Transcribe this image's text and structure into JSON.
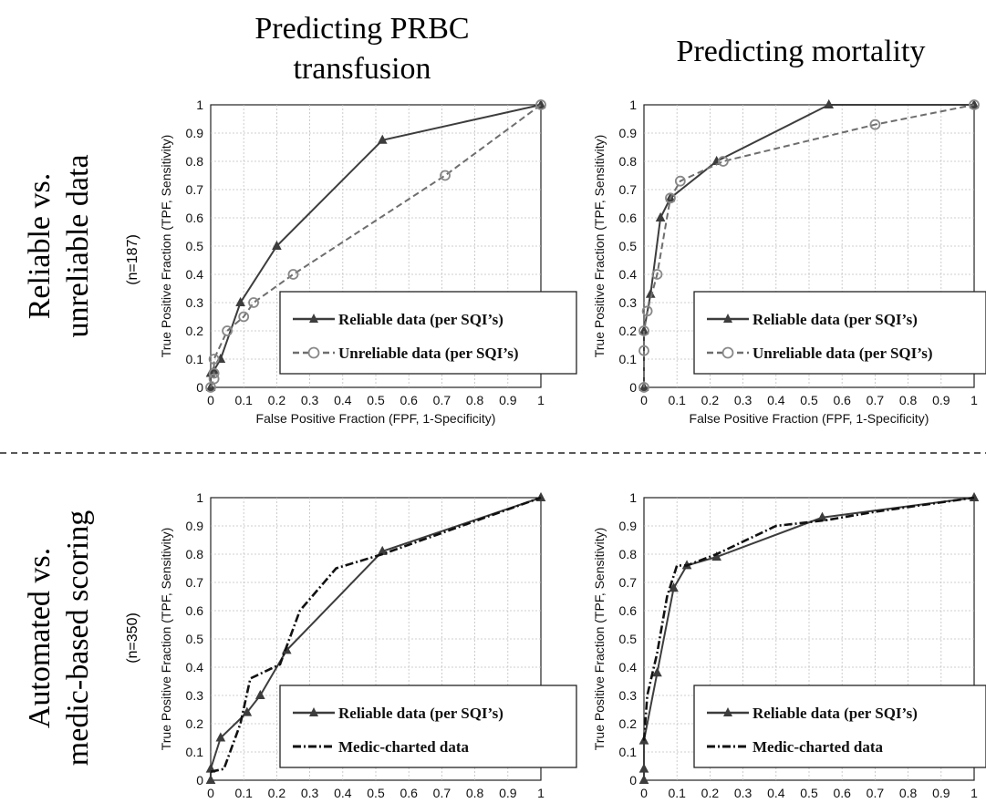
{
  "column_titles": [
    [
      "Predicting PRBC",
      "transfusion"
    ],
    [
      "Predicting mortality"
    ]
  ],
  "row_titles": [
    {
      "lines": [
        "Reliable vs.",
        "unreliable data"
      ],
      "n": "(n=187)"
    },
    {
      "lines": [
        "Automated vs.",
        "medic-based scoring"
      ],
      "n": "(n=350)"
    }
  ],
  "colors": {
    "solid_series": "#3d3d3d",
    "dashed_series_top": "#6e6e6e",
    "dashed_series_bottom": "#111111",
    "grid": "#c0c0c0"
  },
  "chart_data": [
    {
      "type": "line",
      "xlabel": "False Positive Fraction (FPF, 1-Specificity)",
      "ylabel": "True Positive Fraction (TPF, Sensitivity)",
      "xlim": [
        0,
        1
      ],
      "ylim": [
        0,
        1
      ],
      "ticks": [
        "0",
        "0.1",
        "0.2",
        "0.3",
        "0.4",
        "0.5",
        "0.6",
        "0.7",
        "0.8",
        "0.9",
        "1"
      ],
      "grid": true,
      "legend_position": "bottom-right",
      "series": [
        {
          "name": "Reliable data (per SQI’s)",
          "marker": "triangle",
          "style": "solid",
          "x": [
            0,
            0,
            0.01,
            0.03,
            0.09,
            0.2,
            0.52,
            1
          ],
          "y": [
            0,
            0.05,
            0.06,
            0.1,
            0.3,
            0.5,
            0.875,
            1
          ]
        },
        {
          "name": "Unreliable data (per SQI’s)",
          "marker": "circle",
          "style": "dashed",
          "x": [
            0,
            0.01,
            0.01,
            0.01,
            0.05,
            0.1,
            0.13,
            0.25,
            0.71,
            1
          ],
          "y": [
            0,
            0.03,
            0.05,
            0.1,
            0.2,
            0.25,
            0.3,
            0.4,
            0.75,
            1
          ]
        }
      ]
    },
    {
      "type": "line",
      "xlabel": "False Positive Fraction (FPF, 1-Specificity)",
      "ylabel": "True Positive Fraction (TPF, Sensitivity)",
      "xlim": [
        0,
        1
      ],
      "ylim": [
        0,
        1
      ],
      "ticks": [
        "0",
        "0.1",
        "0.2",
        "0.3",
        "0.4",
        "0.5",
        "0.6",
        "0.7",
        "0.8",
        "0.9",
        "1"
      ],
      "grid": true,
      "legend_position": "bottom-right",
      "series": [
        {
          "name": "Reliable data (per SQI’s)",
          "marker": "triangle",
          "style": "solid",
          "x": [
            0,
            0,
            0.02,
            0.05,
            0.08,
            0.22,
            0.56,
            1
          ],
          "y": [
            0,
            0.2,
            0.33,
            0.6,
            0.67,
            0.8,
            1,
            1
          ]
        },
        {
          "name": "Unreliable data (per SQI’s)",
          "marker": "circle",
          "style": "dashed",
          "x": [
            0,
            0,
            0,
            0.01,
            0.04,
            0.08,
            0.11,
            0.24,
            0.7,
            1
          ],
          "y": [
            0,
            0.13,
            0.2,
            0.27,
            0.4,
            0.67,
            0.73,
            0.8,
            0.93,
            1
          ]
        }
      ]
    },
    {
      "type": "line",
      "ylabel": "True Positive Fraction (TPF, Sensitivity)",
      "xlim": [
        0,
        1
      ],
      "ylim": [
        0,
        1
      ],
      "ticks": [
        "0",
        "0.1",
        "0.2",
        "0.3",
        "0.4",
        "0.5",
        "0.6",
        "0.7",
        "0.8",
        "0.9",
        "1"
      ],
      "grid": true,
      "legend_position": "bottom-right",
      "series": [
        {
          "name": "Reliable data (per SQI’s)",
          "marker": "triangle",
          "style": "solid",
          "x": [
            0,
            0,
            0.03,
            0.11,
            0.15,
            0.23,
            0.52,
            1
          ],
          "y": [
            0,
            0.04,
            0.15,
            0.24,
            0.3,
            0.46,
            0.81,
            1
          ]
        },
        {
          "name": "Medic-charted data",
          "marker": "none",
          "style": "dashdot",
          "x": [
            0,
            0.04,
            0.09,
            0.12,
            0.21,
            0.27,
            0.38,
            0.52,
            1
          ],
          "y": [
            0.03,
            0.04,
            0.2,
            0.36,
            0.41,
            0.6,
            0.75,
            0.8,
            1
          ]
        }
      ]
    },
    {
      "type": "line",
      "ylabel": "True Positive Fraction (TPF, Sensitivity)",
      "xlim": [
        0,
        1
      ],
      "ylim": [
        0,
        1
      ],
      "ticks": [
        "0",
        "0.1",
        "0.2",
        "0.3",
        "0.4",
        "0.5",
        "0.6",
        "0.7",
        "0.8",
        "0.9",
        "1"
      ],
      "grid": true,
      "legend_position": "bottom-right",
      "series": [
        {
          "name": "Reliable data (per SQI’s)",
          "marker": "triangle",
          "style": "solid",
          "x": [
            0,
            0,
            0,
            0.04,
            0.09,
            0.13,
            0.22,
            0.54,
            1
          ],
          "y": [
            0,
            0.04,
            0.14,
            0.38,
            0.68,
            0.76,
            0.79,
            0.93,
            1
          ]
        },
        {
          "name": "Medic-charted data",
          "marker": "none",
          "style": "dashdot",
          "x": [
            0,
            0.01,
            0.04,
            0.07,
            0.1,
            0.13,
            0.22,
            0.4,
            0.55,
            0.7,
            1
          ],
          "y": [
            0.14,
            0.3,
            0.45,
            0.65,
            0.76,
            0.76,
            0.8,
            0.9,
            0.92,
            0.95,
            1
          ]
        }
      ]
    }
  ]
}
